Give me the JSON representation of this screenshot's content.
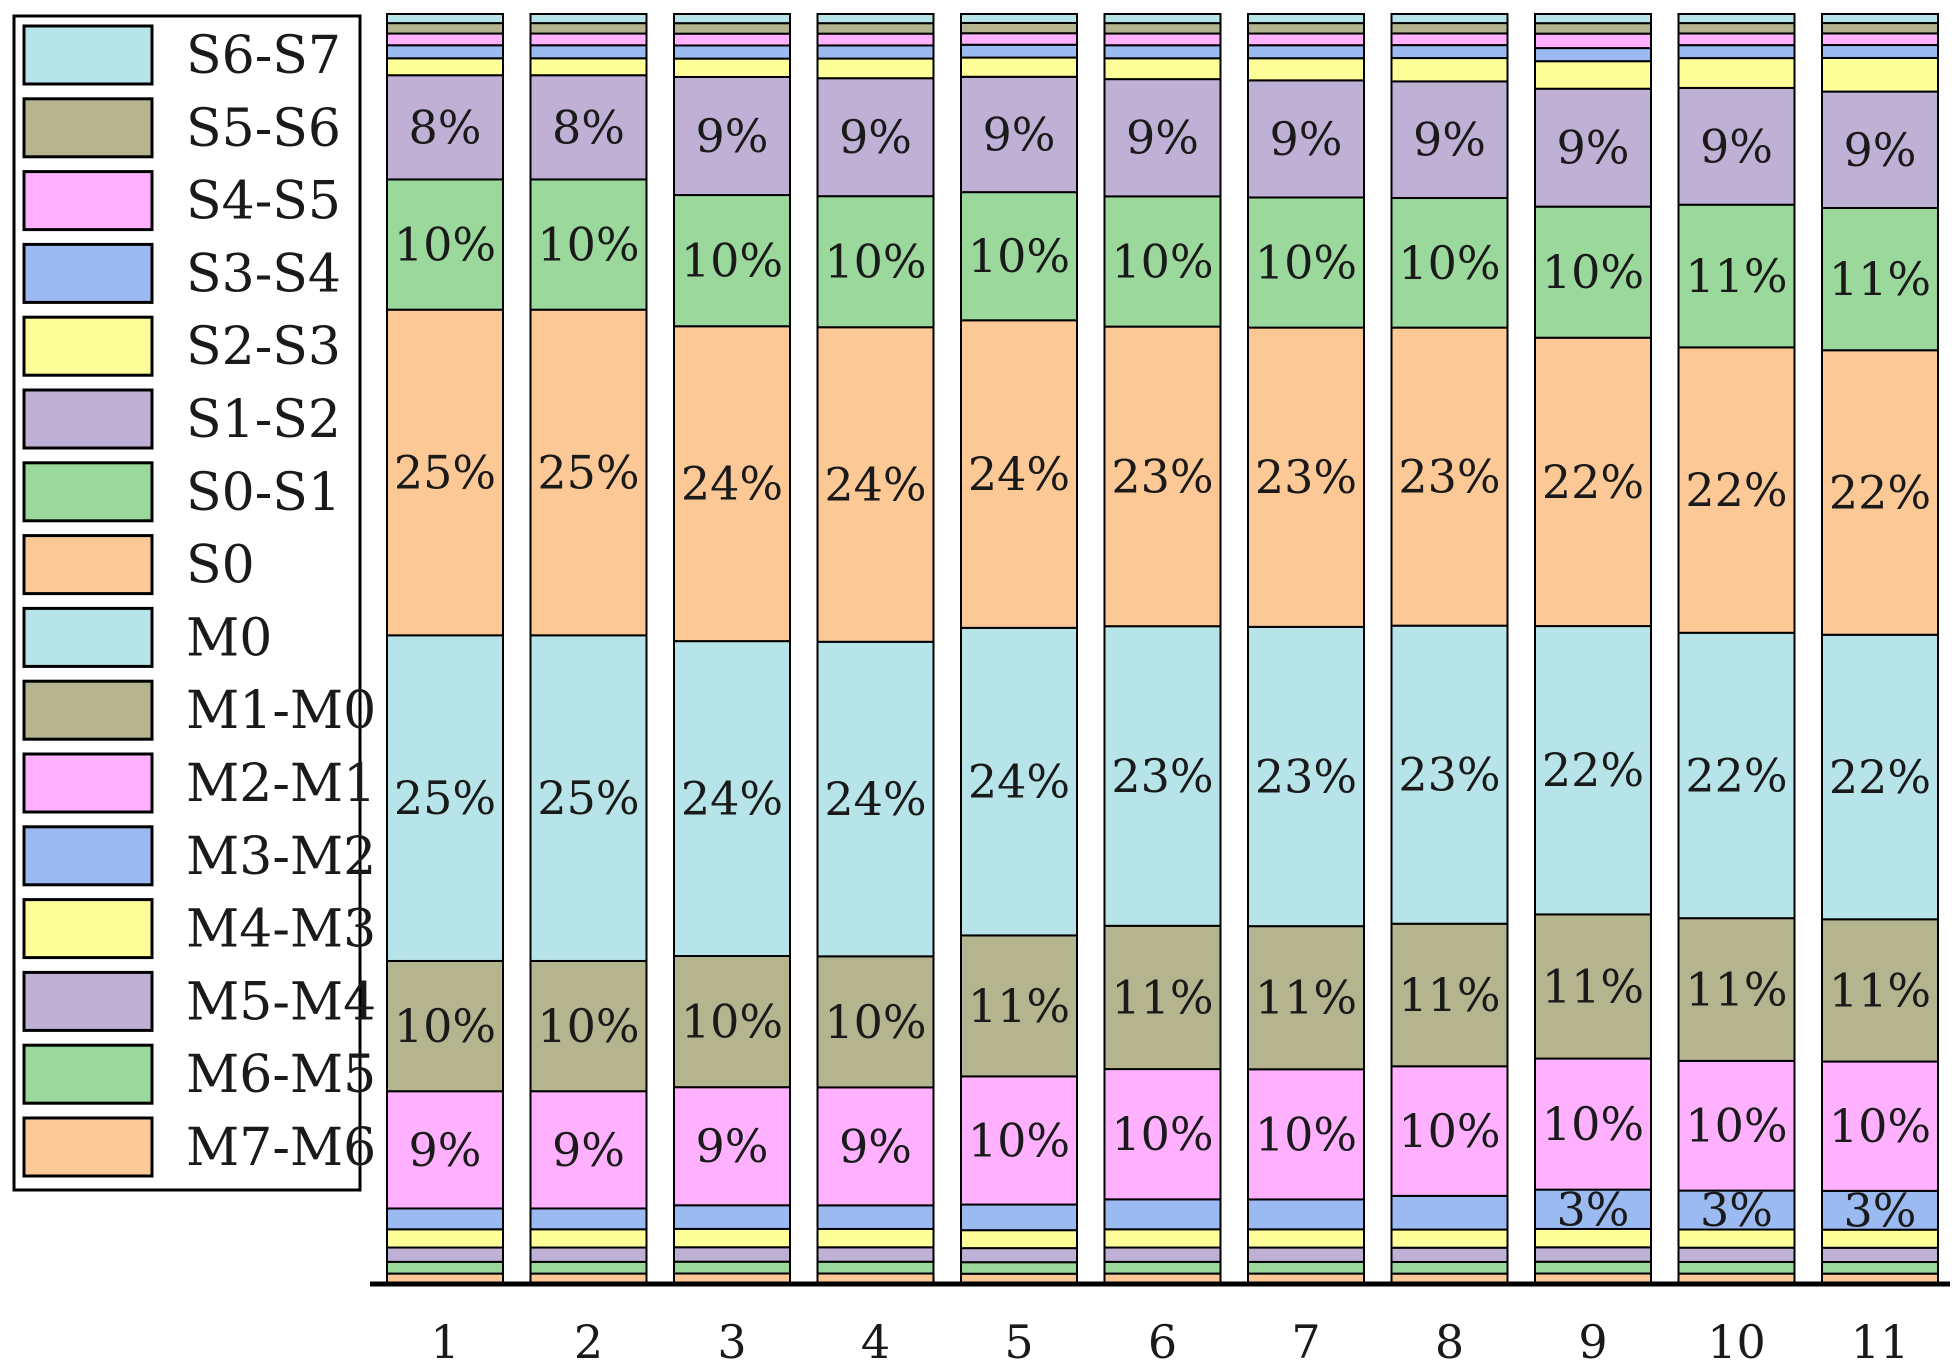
{
  "chart_data": {
    "type": "stacked-bar",
    "title": "",
    "xlabel": "",
    "ylabel": "",
    "categories": [
      "1",
      "2",
      "3",
      "4",
      "5",
      "6",
      "7",
      "8",
      "9",
      "10",
      "11"
    ],
    "series": [
      {
        "name": "M7-M6",
        "color": "#fcc896",
        "values": [
          0.8,
          0.8,
          0.8,
          0.8,
          0.8,
          0.8,
          0.8,
          0.8,
          0.8,
          0.8,
          0.8
        ],
        "labels": [
          "",
          "",
          "",
          "",
          "",
          "",
          "",
          "",
          "",
          "",
          ""
        ]
      },
      {
        "name": "M6-M5",
        "color": "#9bd89b",
        "values": [
          0.9,
          0.9,
          0.9,
          0.9,
          0.9,
          0.9,
          0.9,
          0.9,
          0.9,
          0.9,
          0.9
        ],
        "labels": [
          "",
          "",
          "",
          "",
          "",
          "",
          "",
          "",
          "",
          "",
          ""
        ]
      },
      {
        "name": "M5-M4",
        "color": "#bfb1d6",
        "values": [
          1.1,
          1.1,
          1.1,
          1.1,
          1.1,
          1.1,
          1.1,
          1.1,
          1.1,
          1.1,
          1.1
        ],
        "labels": [
          "",
          "",
          "",
          "",
          "",
          "",
          "",
          "",
          "",
          "",
          ""
        ]
      },
      {
        "name": "M4-M3",
        "color": "#ffff99",
        "values": [
          1.4,
          1.4,
          1.4,
          1.4,
          1.4,
          1.4,
          1.4,
          1.4,
          1.4,
          1.4,
          1.4
        ],
        "labels": [
          "",
          "",
          "",
          "",
          "",
          "",
          "",
          "",
          "",
          "",
          ""
        ]
      },
      {
        "name": "M3-M2",
        "color": "#9bbaf2",
        "values": [
          1.6,
          1.6,
          1.8,
          1.8,
          2.0,
          2.3,
          2.3,
          2.6,
          3.0,
          3.0,
          3.0
        ],
        "labels": [
          "",
          "",
          "",
          "",
          "",
          "",
          "",
          "",
          "3%",
          "3%",
          "3%"
        ]
      },
      {
        "name": "M2-M1",
        "color": "#ffb1ff",
        "values": [
          9,
          9,
          9,
          9,
          10,
          10,
          10,
          10,
          10,
          10,
          10
        ],
        "labels": [
          "9%",
          "9%",
          "9%",
          "9%",
          "10%",
          "10%",
          "10%",
          "10%",
          "10%",
          "10%",
          "10%"
        ]
      },
      {
        "name": "M1-M0",
        "color": "#b4b48f",
        "values": [
          10,
          10,
          10,
          10,
          11,
          11,
          11,
          11,
          11,
          11,
          11
        ],
        "labels": [
          "10%",
          "10%",
          "10%",
          "10%",
          "11%",
          "11%",
          "11%",
          "11%",
          "11%",
          "11%",
          "11%"
        ]
      },
      {
        "name": "M0",
        "color": "#b7e4e8",
        "values": [
          25,
          25,
          24,
          24,
          24,
          23,
          23,
          23,
          22,
          22,
          22
        ],
        "labels": [
          "25%",
          "25%",
          "24%",
          "24%",
          "24%",
          "23%",
          "23%",
          "23%",
          "22%",
          "22%",
          "22%"
        ]
      },
      {
        "name": "S0",
        "color": "#fcc896",
        "values": [
          25,
          25,
          24,
          24,
          24,
          23,
          23,
          23,
          22,
          22,
          22
        ],
        "labels": [
          "25%",
          "25%",
          "24%",
          "24%",
          "24%",
          "23%",
          "23%",
          "23%",
          "22%",
          "22%",
          "22%"
        ]
      },
      {
        "name": "S0-S1",
        "color": "#9bd89b",
        "values": [
          10,
          10,
          10,
          10,
          10,
          10,
          10,
          10,
          10,
          11,
          11
        ],
        "labels": [
          "10%",
          "10%",
          "10%",
          "10%",
          "10%",
          "10%",
          "10%",
          "10%",
          "10%",
          "11%",
          "11%"
        ]
      },
      {
        "name": "S1-S2",
        "color": "#bfb1d6",
        "values": [
          8,
          8,
          9,
          9,
          9,
          9,
          9,
          9,
          9,
          9,
          9
        ],
        "labels": [
          "8%",
          "8%",
          "9%",
          "9%",
          "9%",
          "9%",
          "9%",
          "9%",
          "9%",
          "9%",
          "9%"
        ]
      },
      {
        "name": "S2-S3",
        "color": "#ffff99",
        "values": [
          1.3,
          1.3,
          1.4,
          1.5,
          1.5,
          1.6,
          1.7,
          1.8,
          2.1,
          2.3,
          2.6
        ],
        "labels": [
          "",
          "",
          "",
          "",
          "",
          "",
          "",
          "",
          "",
          "",
          ""
        ]
      },
      {
        "name": "S3-S4",
        "color": "#9bbaf2",
        "values": [
          1.0,
          1.0,
          1.0,
          1.0,
          1.0,
          1.0,
          1.0,
          1.0,
          1.0,
          1.0,
          1.0
        ],
        "labels": [
          "",
          "",
          "",
          "",
          "",
          "",
          "",
          "",
          "",
          "",
          ""
        ]
      },
      {
        "name": "S4-S5",
        "color": "#ffb1ff",
        "values": [
          0.9,
          0.9,
          0.9,
          0.9,
          0.9,
          0.9,
          0.9,
          0.9,
          1.1,
          0.9,
          0.9
        ],
        "labels": [
          "",
          "",
          "",
          "",
          "",
          "",
          "",
          "",
          "",
          "",
          ""
        ]
      },
      {
        "name": "S5-S6",
        "color": "#b4b48f",
        "values": [
          0.8,
          0.8,
          0.8,
          0.8,
          0.8,
          0.8,
          0.8,
          0.8,
          0.8,
          0.8,
          0.8
        ],
        "labels": [
          "",
          "",
          "",
          "",
          "",
          "",
          "",
          "",
          "",
          "",
          ""
        ]
      },
      {
        "name": "S6-S7",
        "color": "#b7e4e8",
        "values": [
          0.7,
          0.7,
          0.7,
          0.7,
          0.7,
          0.7,
          0.7,
          0.7,
          0.7,
          0.7,
          0.7
        ],
        "labels": [
          "",
          "",
          "",
          "",
          "",
          "",
          "",
          "",
          "",
          "",
          ""
        ]
      }
    ],
    "legend": {
      "placement": "left",
      "order": [
        "S6-S7",
        "S5-S6",
        "S4-S5",
        "S3-S4",
        "S2-S3",
        "S1-S2",
        "S0-S1",
        "S0",
        "M0",
        "M1-M0",
        "M2-M1",
        "M3-M2",
        "M4-M3",
        "M5-M4",
        "M6-M5",
        "M7-M6"
      ]
    },
    "grid": false,
    "background": "#ffffff",
    "border_color": "#000000"
  }
}
